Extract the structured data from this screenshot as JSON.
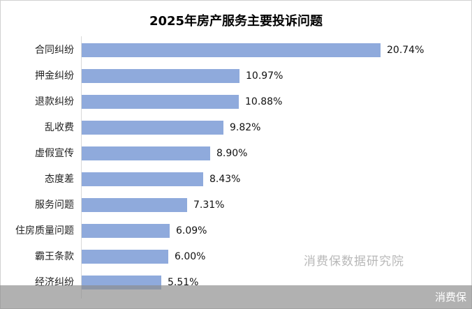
{
  "chart_data": {
    "type": "bar",
    "orientation": "horizontal",
    "title": "2025年房产服务主要投诉问题",
    "categories": [
      "合同纠纷",
      "押金纠纷",
      "退款纠纷",
      "乱收费",
      "虚假宣传",
      "态度差",
      "服务问题",
      "住房质量问题",
      "霸王条款",
      "经济纠纷"
    ],
    "values": [
      20.74,
      10.97,
      10.88,
      9.82,
      8.9,
      8.43,
      7.31,
      6.09,
      6.0,
      5.51
    ],
    "labels": [
      "20.74%",
      "10.97%",
      "10.88%",
      "9.82%",
      "8.90%",
      "8.43%",
      "7.31%",
      "6.09%",
      "6.00%",
      "5.51%"
    ],
    "xlabel": "",
    "ylabel": "",
    "unit": "%",
    "grid": false,
    "legend": null,
    "bar_color": "#8faadc"
  },
  "watermark": "消费保数据研究院",
  "footer": {
    "label": "消费保"
  }
}
